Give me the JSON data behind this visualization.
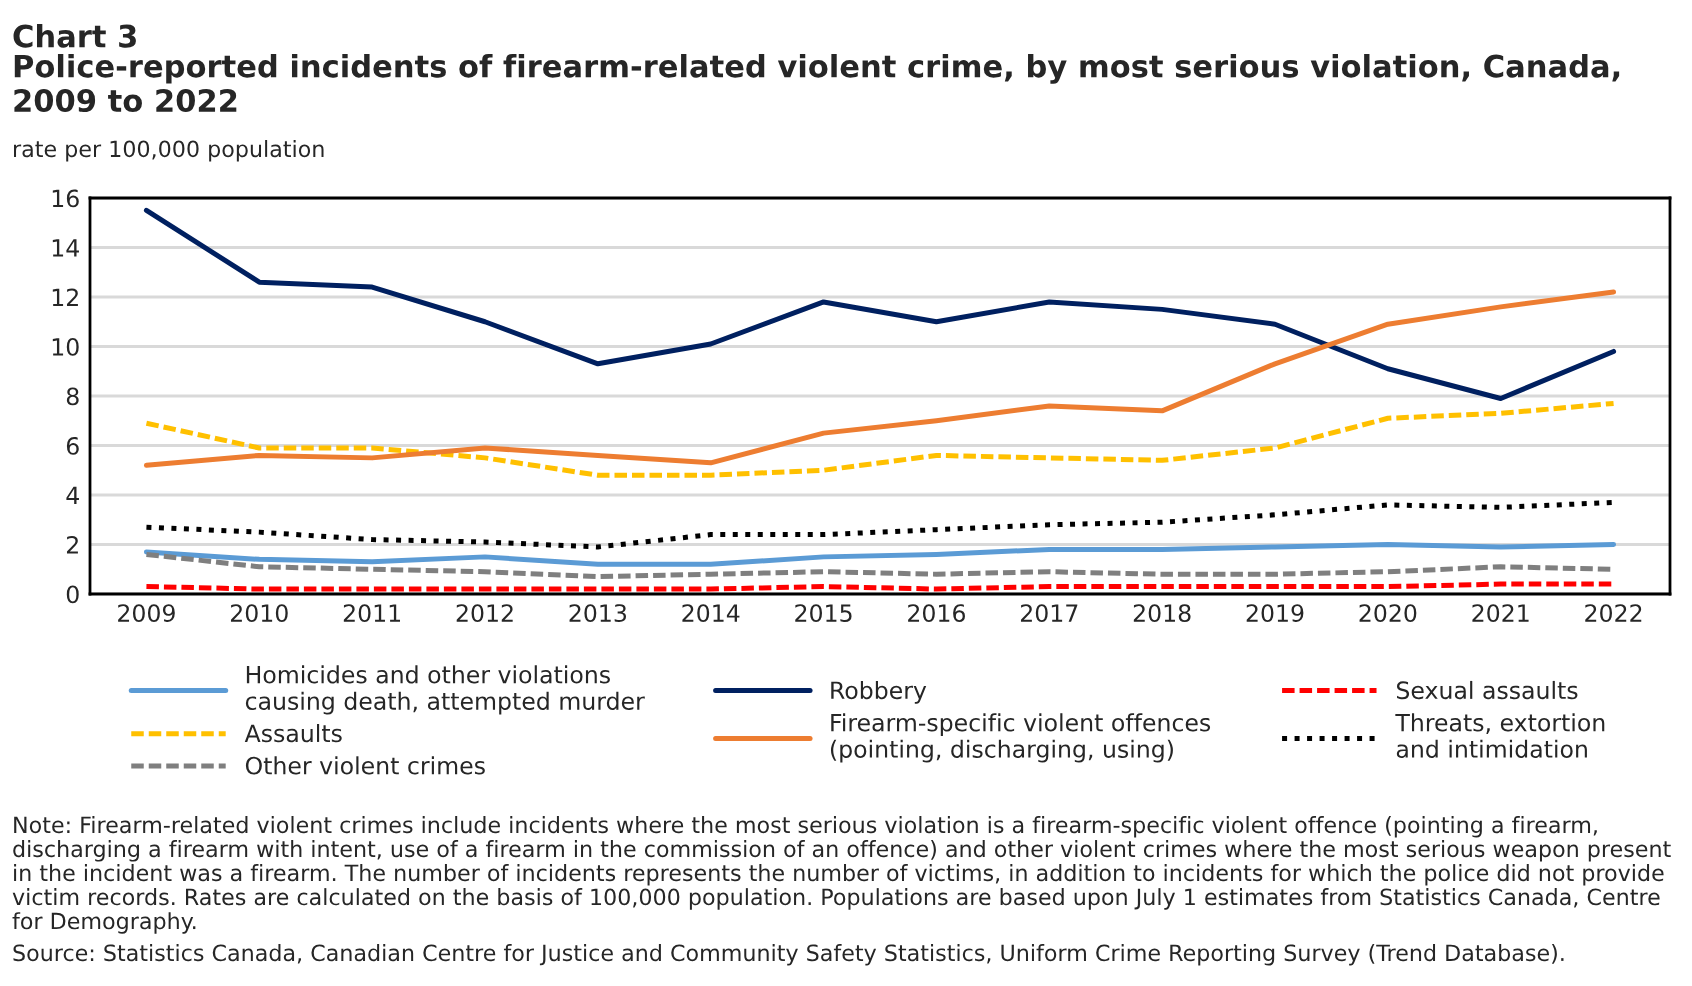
{
  "chart_data": {
    "type": "line",
    "title": "Chart 3",
    "subtitle": "Police-reported incidents of firearm-related violent crime, by most serious violation, Canada,\n2009 to 2022",
    "ylabel": "rate per 100,000 population",
    "categories": [
      "2009",
      "2010",
      "2011",
      "2012",
      "2013",
      "2014",
      "2015",
      "2016",
      "2017",
      "2018",
      "2019",
      "2020",
      "2021",
      "2022"
    ],
    "series": [
      {
        "name": "Homicides and other violations\ncausing death, attempted murder",
        "color": "#5b9bd5",
        "line_style": "solid",
        "values": [
          1.7,
          1.4,
          1.3,
          1.5,
          1.2,
          1.2,
          1.5,
          1.6,
          1.8,
          1.8,
          1.9,
          2.0,
          1.9,
          2.0
        ]
      },
      {
        "name": "Robbery",
        "color": "#002060",
        "line_style": "solid",
        "values": [
          15.5,
          12.6,
          12.4,
          11.0,
          9.3,
          10.1,
          11.8,
          11.0,
          11.8,
          11.5,
          10.9,
          9.1,
          7.9,
          9.8
        ]
      },
      {
        "name": "Sexual assaults",
        "color": "#ff0000",
        "line_style": "dashed",
        "values": [
          0.3,
          0.2,
          0.2,
          0.2,
          0.2,
          0.2,
          0.3,
          0.2,
          0.3,
          0.3,
          0.3,
          0.3,
          0.4,
          0.4
        ]
      },
      {
        "name": "Assaults",
        "color": "#ffc000",
        "line_style": "dashed",
        "values": [
          6.9,
          5.9,
          5.9,
          5.5,
          4.8,
          4.8,
          5.0,
          5.6,
          5.5,
          5.4,
          5.9,
          7.1,
          7.3,
          7.7
        ]
      },
      {
        "name": "Firearm-specific violent offences\n(pointing, discharging, using)",
        "color": "#ed7d31",
        "line_style": "solid",
        "values": [
          5.2,
          5.6,
          5.5,
          5.9,
          5.6,
          5.3,
          6.5,
          7.0,
          7.6,
          7.4,
          9.3,
          10.9,
          11.6,
          12.2
        ]
      },
      {
        "name": "Threats, extortion\nand intimidation",
        "color": "#000000",
        "line_style": "dotted",
        "values": [
          2.7,
          2.5,
          2.2,
          2.1,
          1.9,
          2.4,
          2.4,
          2.6,
          2.8,
          2.9,
          3.2,
          3.6,
          3.5,
          3.7
        ]
      },
      {
        "name": "Other violent crimes",
        "color": "#7f7f7f",
        "line_style": "dashed",
        "values": [
          1.6,
          1.1,
          1.0,
          0.9,
          0.7,
          0.8,
          0.9,
          0.8,
          0.9,
          0.8,
          0.8,
          0.9,
          1.1,
          1.0
        ]
      }
    ],
    "ylim": [
      0,
      16
    ],
    "yticks": [
      0,
      2,
      4,
      6,
      8,
      10,
      12,
      14,
      16
    ],
    "grid": "y",
    "legend": "bottom",
    "marker": "none",
    "annotations": [
      "Note: Firearm-related violent crimes include incidents where the most serious violation is a firearm-specific violent offence (pointing a firearm, discharging a firearm with intent, use of a firearm in the commission of an offence) and other violent crimes where the most serious weapon present in the incident was a firearm. The number of incidents represents the number of victims, in addition to incidents for which the police did not provide victim records. Rates are calculated on the basis of 100,000 population. Populations are based upon July 1 estimates from Statistics Canada, Centre for Demography.",
      "Source: Statistics Canada, Canadian Centre for Justice and Community Safety Statistics, Uniform Crime Reporting Survey (Trend Database)."
    ]
  }
}
